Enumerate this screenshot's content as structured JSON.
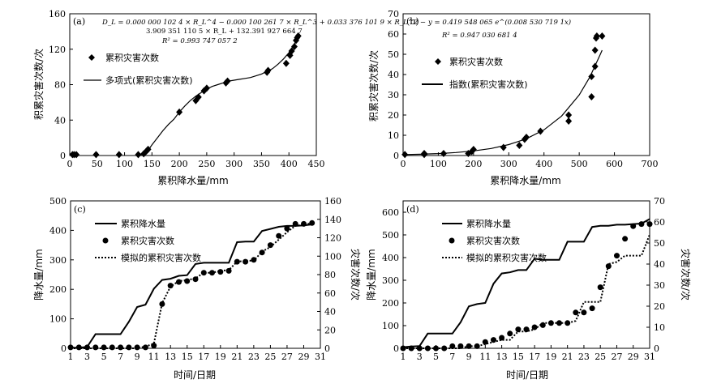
{
  "chart_data": [
    {
      "id": "a",
      "type": "scatter",
      "panel_label": "(a)",
      "xlabel": "累积降水量/mm",
      "ylabel": "积累灾害次数/次",
      "xlim": [
        0,
        450
      ],
      "ylim": [
        0,
        160
      ],
      "xticks": [
        0,
        50,
        100,
        150,
        200,
        250,
        300,
        350,
        400,
        450
      ],
      "yticks": [
        0,
        40,
        80,
        120,
        160
      ],
      "equation_lines": [
        "D_L = 0.000 000 102 4 × R_L^4 − 0.000 100 261 7 × R_L^3 + 0.033 376 101 9 × R_L^2 −",
        "3.909 351 110 5 × R_L + 132.391 927 664 7",
        "R² = 0.993 747 057 2"
      ],
      "legend": [
        "累积灾害次数",
        "多项式(累积灾害次数)"
      ],
      "points": [
        [
          5,
          1
        ],
        [
          8,
          1
        ],
        [
          12,
          1
        ],
        [
          48,
          1
        ],
        [
          90,
          1
        ],
        [
          125,
          1
        ],
        [
          135,
          2
        ],
        [
          140,
          5
        ],
        [
          143,
          7
        ],
        [
          200,
          49
        ],
        [
          230,
          62
        ],
        [
          235,
          66
        ],
        [
          245,
          73
        ],
        [
          250,
          76
        ],
        [
          285,
          82
        ],
        [
          288,
          84
        ],
        [
          360,
          94
        ],
        [
          362,
          96
        ],
        [
          395,
          104
        ],
        [
          402,
          113
        ],
        [
          405,
          118
        ],
        [
          410,
          123
        ],
        [
          413,
          130
        ],
        [
          415,
          133
        ],
        [
          417,
          135
        ]
      ],
      "fit": [
        [
          130,
          0
        ],
        [
          140,
          3
        ],
        [
          150,
          12
        ],
        [
          160,
          20
        ],
        [
          170,
          28
        ],
        [
          180,
          35
        ],
        [
          190,
          41
        ],
        [
          200,
          49
        ],
        [
          210,
          56
        ],
        [
          220,
          62
        ],
        [
          230,
          67
        ],
        [
          240,
          71
        ],
        [
          250,
          75
        ],
        [
          260,
          78
        ],
        [
          270,
          80
        ],
        [
          280,
          82
        ],
        [
          290,
          84
        ],
        [
          300,
          85
        ],
        [
          310,
          86
        ],
        [
          320,
          87
        ],
        [
          330,
          88
        ],
        [
          340,
          90
        ],
        [
          350,
          92
        ],
        [
          360,
          95
        ],
        [
          370,
          98
        ],
        [
          380,
          103
        ],
        [
          390,
          109
        ],
        [
          400,
          116
        ],
        [
          410,
          126
        ],
        [
          415,
          133
        ]
      ]
    },
    {
      "id": "b",
      "type": "scatter",
      "panel_label": "(b)",
      "xlabel": "累积降水量/mm",
      "ylabel": "积累灾害次数/次",
      "xlim": [
        0,
        700
      ],
      "ylim": [
        0,
        70
      ],
      "xticks": [
        0,
        100,
        200,
        300,
        400,
        500,
        600,
        700
      ],
      "yticks": [
        0,
        10,
        20,
        30,
        40,
        50,
        60,
        70
      ],
      "equation_lines": [
        "y = 0.419 548 065 e^(0.008 530 719 1x)",
        "R² = 0.947 030 681 4"
      ],
      "legend": [
        "累积灾害次数",
        "指数(累积灾害次数)"
      ],
      "points": [
        [
          5,
          0.5
        ],
        [
          60,
          0.5
        ],
        [
          60,
          1
        ],
        [
          115,
          1
        ],
        [
          185,
          1
        ],
        [
          195,
          2
        ],
        [
          200,
          3
        ],
        [
          285,
          4
        ],
        [
          330,
          5
        ],
        [
          345,
          8
        ],
        [
          350,
          9
        ],
        [
          390,
          12
        ],
        [
          470,
          17
        ],
        [
          470,
          20
        ],
        [
          535,
          29
        ],
        [
          535,
          39
        ],
        [
          545,
          44
        ],
        [
          545,
          52
        ],
        [
          548,
          58
        ],
        [
          550,
          59
        ],
        [
          565,
          59
        ]
      ],
      "fit": [
        [
          0,
          0.42
        ],
        [
          50,
          0.64
        ],
        [
          100,
          0.98
        ],
        [
          150,
          1.5
        ],
        [
          200,
          2.3
        ],
        [
          250,
          3.5
        ],
        [
          300,
          5.4
        ],
        [
          350,
          8.3
        ],
        [
          400,
          12.7
        ],
        [
          450,
          19.5
        ],
        [
          500,
          29.9
        ],
        [
          530,
          38.7
        ],
        [
          560,
          50.0
        ],
        [
          565,
          52.0
        ]
      ]
    },
    {
      "id": "c",
      "type": "line",
      "panel_label": "(c)",
      "xlabel": "时间/日期",
      "ylabel_left": "降水量/mm",
      "ylabel_right": "灾害次数/次",
      "xlim": [
        1,
        31
      ],
      "ylim_left": [
        0,
        500
      ],
      "ylim_right": [
        0,
        160
      ],
      "xticks": [
        1,
        3,
        5,
        7,
        9,
        11,
        13,
        15,
        17,
        19,
        21,
        23,
        25,
        27,
        29,
        31
      ],
      "yticks_left": [
        0,
        100,
        200,
        300,
        400,
        500
      ],
      "yticks_right": [
        0,
        20,
        40,
        60,
        80,
        100,
        120,
        140,
        160
      ],
      "legend": [
        "累积降水量",
        "累积灾害次数",
        "模拟的累积灾害次数"
      ],
      "days": [
        1,
        2,
        3,
        4,
        5,
        6,
        7,
        8,
        9,
        10,
        11,
        12,
        13,
        14,
        15,
        16,
        17,
        18,
        19,
        20,
        21,
        22,
        23,
        24,
        25,
        26,
        27,
        28,
        29,
        30
      ],
      "cum_precip": [
        2,
        2,
        5,
        48,
        48,
        48,
        48,
        90,
        140,
        148,
        202,
        232,
        236,
        246,
        248,
        286,
        290,
        290,
        290,
        290,
        360,
        362,
        362,
        398,
        405,
        412,
        415,
        415,
        417,
        420
      ],
      "cum_disasters": [
        1,
        1,
        1,
        1,
        1,
        1,
        1,
        1,
        1,
        1,
        3,
        48,
        68,
        72,
        73,
        75,
        82,
        82,
        83,
        84,
        94,
        94,
        96,
        104,
        112,
        122,
        130,
        135,
        135,
        136
      ],
      "sim_disasters": [
        0,
        0,
        0,
        0,
        0,
        0,
        0,
        0,
        0,
        2,
        5,
        49,
        67,
        73,
        74,
        76,
        82,
        82,
        84,
        85,
        94,
        95,
        95,
        105,
        110,
        118,
        126,
        133,
        134,
        136
      ]
    },
    {
      "id": "d",
      "type": "line",
      "panel_label": "(d)",
      "xlabel": "时间/日期",
      "ylabel_left": "降水量/mm",
      "ylabel_right": "灾害次数/次",
      "xlim": [
        1,
        31
      ],
      "ylim_left": [
        0,
        650
      ],
      "ylim_right": [
        0,
        70
      ],
      "xticks": [
        1,
        3,
        5,
        7,
        9,
        11,
        13,
        15,
        17,
        19,
        21,
        23,
        25,
        27,
        29,
        31
      ],
      "yticks_left": [
        0,
        100,
        200,
        300,
        400,
        500,
        600
      ],
      "yticks_right": [
        0,
        10,
        20,
        30,
        40,
        50,
        60,
        70
      ],
      "legend": [
        "累积降水量",
        "累积灾害次数",
        "模拟的累积灾害次数"
      ],
      "days": [
        1,
        2,
        3,
        4,
        5,
        6,
        7,
        8,
        9,
        10,
        11,
        12,
        13,
        14,
        15,
        16,
        17,
        18,
        19,
        20,
        21,
        22,
        23,
        24,
        25,
        26,
        27,
        28,
        29,
        30,
        31
      ],
      "cum_precip": [
        5,
        8,
        10,
        65,
        65,
        65,
        65,
        115,
        185,
        195,
        200,
        285,
        330,
        335,
        345,
        345,
        395,
        390,
        390,
        390,
        470,
        470,
        470,
        535,
        540,
        540,
        545,
        545,
        548,
        550,
        570
      ],
      "cum_disasters": [
        0,
        0,
        0,
        0,
        0,
        0,
        1,
        1,
        1,
        1,
        3,
        4,
        5,
        7,
        9,
        9,
        10,
        11,
        12,
        12,
        12,
        17,
        17,
        19,
        29,
        39,
        44,
        52,
        58,
        59,
        59
      ],
      "sim_disasters": [
        0,
        0,
        0,
        0,
        0,
        0,
        0,
        0,
        1,
        1,
        2,
        3,
        4,
        4,
        8,
        8,
        9,
        12,
        12,
        12,
        12,
        13,
        22,
        22,
        22,
        40,
        41,
        44,
        44,
        44,
        54
      ]
    }
  ]
}
